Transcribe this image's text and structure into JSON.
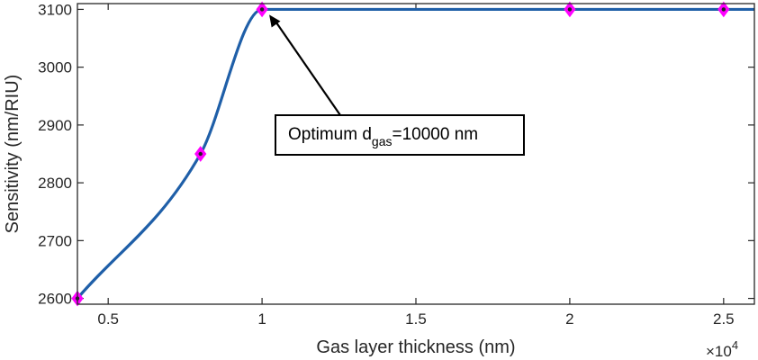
{
  "chart_data": {
    "type": "line",
    "xlabel": "Gas layer thickness (nm)",
    "ylabel": "Sensitivity (nm/RIU)",
    "x_exponent_label": "×10",
    "x_exponent_power": "4",
    "xlim": [
      4000,
      26000
    ],
    "ylim": [
      2590,
      3110
    ],
    "x_ticks": [
      5000,
      10000,
      15000,
      20000,
      25000
    ],
    "x_tick_labels": [
      "0.5",
      "1",
      "1.5",
      "2",
      "2.5"
    ],
    "y_ticks": [
      2600,
      2700,
      2800,
      2900,
      3000,
      3100
    ],
    "y_tick_labels": [
      "2600",
      "2700",
      "2800",
      "2900",
      "3000",
      "3100"
    ],
    "grid": false,
    "series": [
      {
        "x": [
          4000,
          8000,
          10000,
          20000,
          25000
        ],
        "y": [
          2600,
          2850,
          3100,
          3100,
          3100
        ],
        "color": "#1f5fa8",
        "marker_color": "#ff00ff",
        "marker": "diamond"
      }
    ],
    "annotation": {
      "text_main": "Optimum d",
      "text_sub": "gas",
      "text_tail": "=10000 nm",
      "arrow_target_x": 10000,
      "arrow_target_y": 3100
    }
  }
}
